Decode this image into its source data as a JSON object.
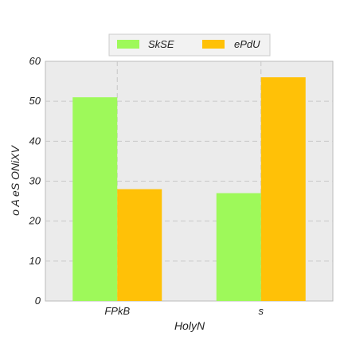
{
  "chart_data": {
    "type": "bar",
    "title": "",
    "xlabel": "HolyN",
    "ylabel": "o A  eS ONiXV",
    "categories": [
      "FPkB",
      "s"
    ],
    "series": [
      {
        "name": "SkSE",
        "values": [
          51,
          27
        ],
        "color": "#9ef95a"
      },
      {
        "name": "ePdU",
        "values": [
          28,
          56
        ],
        "color": "#ffc107"
      }
    ],
    "ylim": [
      0,
      60
    ],
    "yticks": [
      0,
      10,
      20,
      30,
      40,
      50,
      60
    ],
    "grid": true,
    "legend_position": "top-center",
    "background": "#ebebeb"
  }
}
